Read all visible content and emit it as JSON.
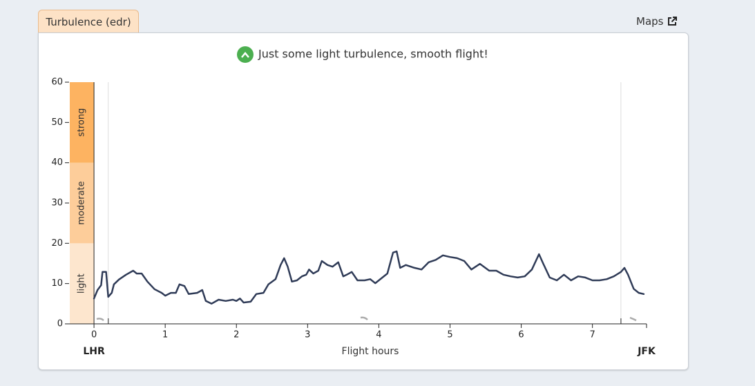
{
  "tab": "Turbulence (edr)",
  "link": "Maps",
  "message": "Just some light turbulence, smooth flight!",
  "chart_data": {
    "type": "line",
    "xlabel": "Flight hours",
    "x_start_label": "LHR",
    "x_end_label": "JFK",
    "color": "#2f3b57",
    "xlim": [
      -0.35,
      7.76
    ],
    "xticks": [
      0,
      1,
      2,
      3,
      4,
      5,
      6,
      7
    ],
    "ylim": [
      0,
      60
    ],
    "yticks": [
      0,
      10,
      20,
      30,
      40,
      50,
      60
    ],
    "reference_lines": [
      0.2,
      7.4
    ],
    "bands": [
      {
        "label": "light",
        "from": 0,
        "to": 20,
        "color": "#fde6ce"
      },
      {
        "label": "moderate",
        "from": 20,
        "to": 40,
        "color": "#fdcd9a"
      },
      {
        "label": "strong",
        "from": 40,
        "to": 60,
        "color": "#fdb361"
      }
    ],
    "x": [
      0,
      0.05,
      0.1,
      0.12,
      0.17,
      0.2,
      0.25,
      0.28,
      0.35,
      0.45,
      0.55,
      0.6,
      0.67,
      0.75,
      0.85,
      0.95,
      1.0,
      1.08,
      1.15,
      1.2,
      1.27,
      1.33,
      1.45,
      1.52,
      1.57,
      1.65,
      1.75,
      1.85,
      1.95,
      2.0,
      2.05,
      2.1,
      2.2,
      2.28,
      2.38,
      2.45,
      2.55,
      2.62,
      2.67,
      2.72,
      2.78,
      2.85,
      2.92,
      2.98,
      3.02,
      3.08,
      3.15,
      3.2,
      3.28,
      3.35,
      3.43,
      3.5,
      3.55,
      3.62,
      3.7,
      3.8,
      3.88,
      3.95,
      4.05,
      4.12,
      4.2,
      4.25,
      4.3,
      4.38,
      4.5,
      4.6,
      4.7,
      4.8,
      4.9,
      5.0,
      5.1,
      5.2,
      5.3,
      5.42,
      5.55,
      5.65,
      5.75,
      5.85,
      5.95,
      6.05,
      6.15,
      6.25,
      6.3,
      6.4,
      6.5,
      6.6,
      6.7,
      6.8,
      6.9,
      7.0,
      7.1,
      7.2,
      7.3,
      7.4,
      7.45,
      7.5,
      7.58,
      7.65,
      7.72
    ],
    "values": [
      6.3,
      8.4,
      9.6,
      12.9,
      12.9,
      6.7,
      7.7,
      9.8,
      11,
      12.2,
      13.2,
      12.5,
      12.5,
      10.5,
      8.6,
      7.7,
      7,
      7.7,
      7.7,
      9.8,
      9.4,
      7.4,
      7.7,
      8.4,
      5.7,
      5,
      6,
      5.7,
      6,
      5.7,
      6.3,
      5.3,
      5.5,
      7.4,
      7.7,
      9.8,
      11.1,
      14.6,
      16.3,
      14.2,
      10.5,
      10.8,
      11.8,
      12.2,
      13.5,
      12.5,
      13.2,
      15.6,
      14.6,
      14.2,
      15.3,
      11.8,
      12.2,
      12.9,
      10.8,
      10.8,
      11.1,
      10.1,
      11.5,
      12.5,
      17.7,
      18,
      13.9,
      14.6,
      13.9,
      13.5,
      15.3,
      15.9,
      17,
      16.6,
      16.3,
      15.6,
      13.5,
      14.9,
      13.2,
      13.2,
      12.2,
      11.8,
      11.5,
      11.8,
      13.5,
      17.3,
      15.3,
      11.5,
      10.8,
      12.2,
      10.8,
      11.8,
      11.5,
      10.8,
      10.8,
      11.1,
      11.8,
      12.9,
      13.9,
      12.2,
      8.7,
      7.7,
      7.4
    ]
  }
}
